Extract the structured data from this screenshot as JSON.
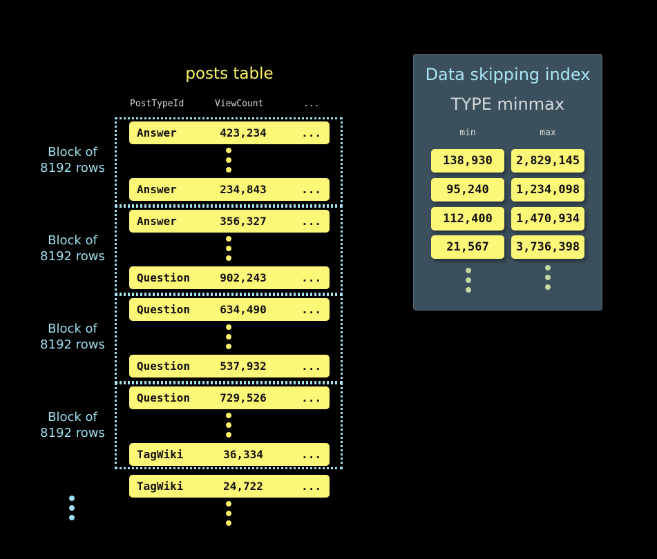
{
  "table": {
    "title": "posts table",
    "columns": [
      "PostTypeId",
      "ViewCount",
      "..."
    ],
    "rows": [
      {
        "type": "Answer",
        "views": "423,234",
        "more": "..."
      },
      {
        "type": "Answer",
        "views": "234,843",
        "more": "..."
      },
      {
        "type": "Answer",
        "views": "356,327",
        "more": "..."
      },
      {
        "type": "Question",
        "views": "902,243",
        "more": "..."
      },
      {
        "type": "Question",
        "views": "634,490",
        "more": "..."
      },
      {
        "type": "Question",
        "views": "537,932",
        "more": "..."
      },
      {
        "type": "Question",
        "views": "729,526",
        "more": "..."
      },
      {
        "type": "TagWiki",
        "views": "36,334",
        "more": "..."
      },
      {
        "type": "TagWiki",
        "views": "24,722",
        "more": "..."
      }
    ],
    "block_labels": [
      "Block of\n8192 rows",
      "Block of\n8192 rows",
      "Block of\n8192 rows",
      "Block of\n8192 rows"
    ]
  },
  "index": {
    "title": "Data skipping index",
    "type": "TYPE minmax",
    "min_header": "min",
    "max_header": "max",
    "entries": [
      {
        "min": "138,930",
        "max": "2,829,145"
      },
      {
        "min": "95,240",
        "max": "1,234,098"
      },
      {
        "min": "112,400",
        "max": "1,470,934"
      },
      {
        "min": "21,567",
        "max": "3,736,398"
      }
    ]
  },
  "colors": {
    "row": "#fdf778",
    "block_border": "#a6e3ef",
    "panel": "#3c4f5c",
    "index_dots": "#c5d8a4"
  }
}
